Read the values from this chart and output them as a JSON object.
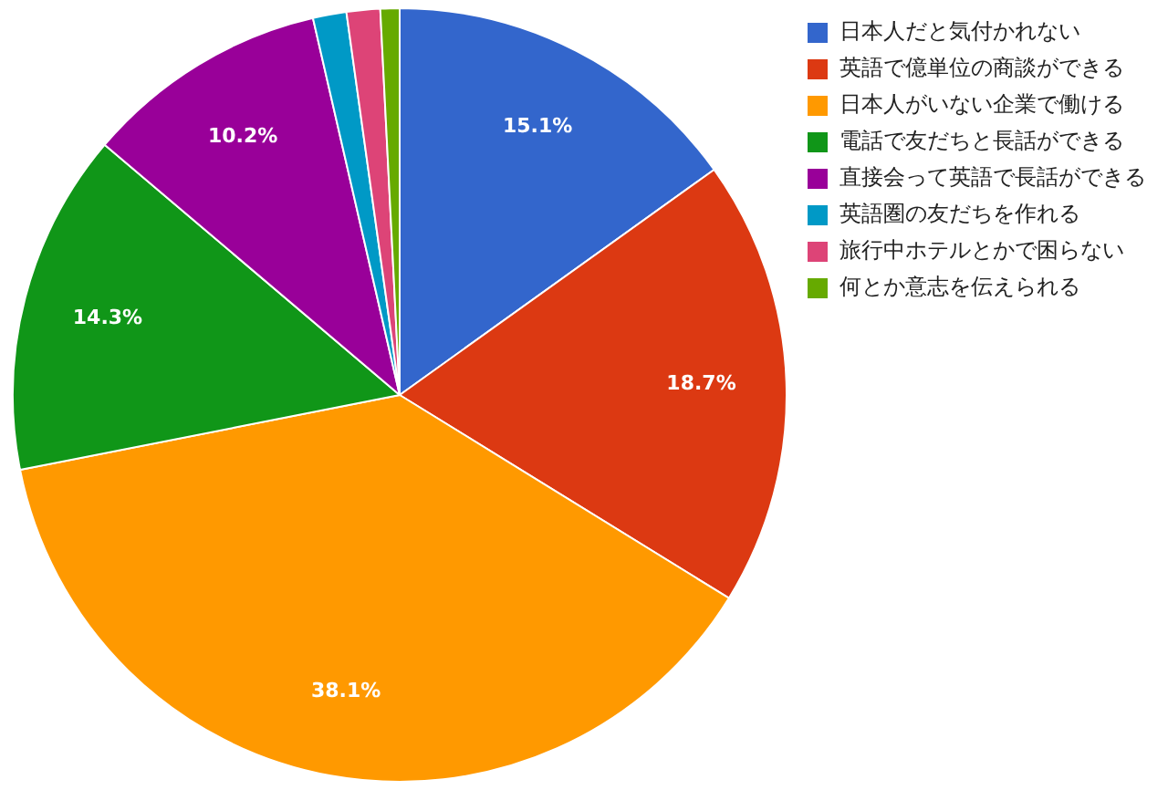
{
  "chart_data": {
    "type": "pie",
    "categories": [
      "日本人だと気付かれない",
      "英語で億単位の商談ができる",
      "日本人がいない企業で働ける",
      "電話で友だちと長話ができる",
      "直接会って英語で長話ができる",
      "英語圏の友だちを作れる",
      "旅行中ホテルとかで困らない",
      "何とか意志を伝えられる"
    ],
    "values": [
      15.1,
      18.7,
      38.1,
      14.3,
      10.2,
      1.4,
      1.4,
      0.8
    ],
    "colors": [
      "#3366cc",
      "#dc3912",
      "#ff9900",
      "#109618",
      "#990099",
      "#0099c6",
      "#dd4477",
      "#66aa00"
    ],
    "value_labels": [
      "15.1%",
      "18.7%",
      "38.1%",
      "14.3%",
      "10.2%",
      null,
      null,
      null
    ],
    "legend": "top right"
  }
}
